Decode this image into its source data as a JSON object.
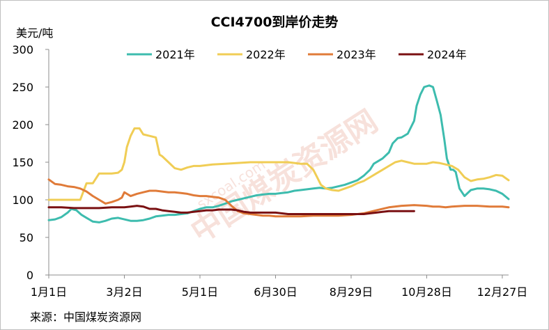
{
  "chart_data": {
    "type": "line",
    "title": "CCI4700到岸价走势",
    "ylabel": "美元/吨",
    "ylim": [
      0,
      300
    ],
    "yticks": [
      0,
      50,
      100,
      150,
      200,
      250,
      300
    ],
    "xlim": [
      0,
      365
    ],
    "xticks": [
      {
        "pos": 0,
        "label": "1月1日"
      },
      {
        "pos": 60,
        "label": "3月2日"
      },
      {
        "pos": 120,
        "label": "5月1日"
      },
      {
        "pos": 180,
        "label": "6月30日"
      },
      {
        "pos": 240,
        "label": "8月29日"
      },
      {
        "pos": 300,
        "label": "10月28日"
      },
      {
        "pos": 360,
        "label": "12月27日"
      }
    ],
    "legend_position": "top",
    "grid": false,
    "series": [
      {
        "name": "2021年",
        "color": "#3dbcae",
        "x": [
          0,
          5,
          10,
          15,
          18,
          22,
          26,
          30,
          35,
          40,
          45,
          50,
          55,
          60,
          65,
          70,
          75,
          80,
          85,
          90,
          95,
          100,
          110,
          120,
          125,
          130,
          135,
          140,
          145,
          150,
          155,
          160,
          165,
          170,
          175,
          180,
          185,
          190,
          195,
          200,
          205,
          210,
          215,
          220,
          225,
          230,
          235,
          240,
          245,
          250,
          255,
          258,
          262,
          265,
          270,
          273,
          277,
          280,
          285,
          290,
          292,
          295,
          298,
          302,
          305,
          308,
          311,
          314,
          316,
          319,
          321,
          323,
          326,
          330,
          335,
          340,
          345,
          350,
          355,
          360,
          365
        ],
        "y": [
          73,
          74,
          77,
          83,
          88,
          86,
          80,
          76,
          71,
          70,
          72,
          75,
          76,
          74,
          72,
          72,
          73,
          75,
          78,
          79,
          80,
          80,
          82,
          88,
          90,
          90,
          92,
          95,
          98,
          100,
          102,
          104,
          106,
          107,
          108,
          108,
          109,
          110,
          112,
          113,
          114,
          115,
          116,
          115,
          116,
          118,
          120,
          123,
          126,
          132,
          140,
          148,
          152,
          155,
          163,
          175,
          182,
          183,
          188,
          205,
          225,
          240,
          250,
          252,
          250,
          232,
          213,
          180,
          155,
          140,
          140,
          137,
          115,
          105,
          113,
          115,
          115,
          114,
          112,
          108,
          101
        ]
      },
      {
        "name": "2022年",
        "color": "#f0cd55",
        "x": [
          0,
          10,
          20,
          25,
          30,
          35,
          40,
          45,
          50,
          55,
          58,
          60,
          62,
          65,
          68,
          72,
          75,
          80,
          85,
          88,
          90,
          95,
          100,
          105,
          110,
          115,
          120,
          130,
          140,
          150,
          160,
          170,
          180,
          190,
          200,
          205,
          210,
          213,
          216,
          220,
          225,
          230,
          235,
          240,
          245,
          250,
          255,
          260,
          265,
          270,
          275,
          280,
          285,
          290,
          295,
          300,
          305,
          310,
          315,
          320,
          325,
          330,
          335,
          340,
          345,
          350,
          355,
          360,
          365
        ],
        "y": [
          100,
          100,
          100,
          100,
          122,
          122,
          135,
          135,
          135,
          136,
          140,
          150,
          170,
          185,
          195,
          195,
          187,
          185,
          183,
          160,
          158,
          150,
          142,
          140,
          143,
          145,
          145,
          147,
          148,
          149,
          150,
          150,
          150,
          150,
          148,
          148,
          140,
          130,
          120,
          115,
          113,
          112,
          115,
          118,
          122,
          125,
          130,
          135,
          140,
          145,
          150,
          152,
          150,
          148,
          148,
          148,
          150,
          149,
          147,
          145,
          140,
          130,
          125,
          127,
          128,
          130,
          133,
          132,
          126
        ]
      },
      {
        "name": "2023年",
        "color": "#e07b39",
        "x": [
          0,
          5,
          10,
          15,
          20,
          25,
          30,
          35,
          40,
          45,
          50,
          55,
          58,
          60,
          62,
          65,
          70,
          75,
          80,
          85,
          90,
          95,
          100,
          105,
          110,
          115,
          120,
          125,
          130,
          135,
          140,
          145,
          150,
          155,
          160,
          165,
          170,
          175,
          180,
          190,
          200,
          210,
          220,
          230,
          240,
          250,
          260,
          270,
          280,
          290,
          300,
          305,
          310,
          315,
          320,
          330,
          340,
          350,
          360,
          365
        ],
        "y": [
          127,
          121,
          120,
          118,
          117,
          115,
          111,
          105,
          100,
          95,
          97,
          100,
          103,
          110,
          108,
          105,
          108,
          110,
          112,
          112,
          111,
          110,
          110,
          109,
          108,
          106,
          105,
          105,
          104,
          103,
          100,
          92,
          85,
          82,
          81,
          80,
          79,
          79,
          78,
          78,
          78,
          79,
          79,
          79,
          80,
          82,
          86,
          90,
          92,
          93,
          92,
          91,
          91,
          90,
          91,
          92,
          92,
          91,
          91,
          90
        ]
      },
      {
        "name": "2024年",
        "color": "#7a1012",
        "x": [
          0,
          10,
          20,
          30,
          40,
          50,
          55,
          60,
          65,
          70,
          75,
          80,
          85,
          90,
          95,
          100,
          105,
          110,
          115,
          120,
          125,
          130,
          135,
          140,
          145,
          150,
          155,
          160,
          165,
          170,
          175,
          180,
          190,
          200,
          210,
          220,
          230,
          240,
          245,
          250,
          255,
          260,
          265,
          270,
          275,
          280,
          285,
          290
        ],
        "y": [
          90,
          90,
          89,
          89,
          89,
          90,
          90,
          90,
          91,
          92,
          91,
          88,
          88,
          86,
          85,
          84,
          83,
          83,
          84,
          85,
          86,
          86,
          87,
          87,
          87,
          86,
          84,
          83,
          83,
          83,
          83,
          83,
          81,
          81,
          81,
          81,
          81,
          81,
          81,
          81,
          82,
          83,
          84,
          85,
          85,
          85,
          85,
          85
        ]
      }
    ],
    "source": "来源：中国煤炭资源网",
    "watermark": "中国煤炭资源网",
    "watermark_url": "sxcoal.com"
  }
}
